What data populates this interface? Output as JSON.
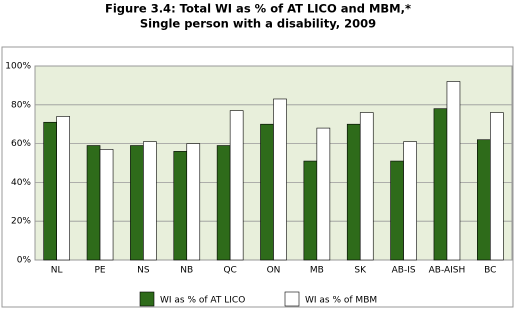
{
  "chart_data": {
    "type": "bar",
    "title": "Figure 3.4: Total WI as % of AT LICO and MBM,*",
    "subtitle": "Single person with a disability, 2009",
    "categories": [
      "NL",
      "PE",
      "NS",
      "NB",
      "QC",
      "ON",
      "MB",
      "SK",
      "AB-IS",
      "AB-AISH",
      "BC"
    ],
    "series": [
      {
        "name": "WI as % of AT LICO",
        "color": "#2e6b1a",
        "values": [
          71,
          59,
          59,
          56,
          59,
          70,
          51,
          70,
          51,
          78,
          62
        ]
      },
      {
        "name": "WI as % of MBM",
        "color": "#ffffff",
        "values": [
          74,
          57,
          61,
          60,
          77,
          83,
          68,
          76,
          61,
          92,
          76
        ]
      }
    ],
    "ylim": [
      0,
      100
    ],
    "yticks": [
      {
        "value": 0,
        "label": "0%"
      },
      {
        "value": 20,
        "label": "20%"
      },
      {
        "value": 40,
        "label": "40%"
      },
      {
        "value": 60,
        "label": "60%"
      },
      {
        "value": 80,
        "label": "80%"
      },
      {
        "value": 100,
        "label": "100%"
      }
    ],
    "grid": true,
    "legend": "bottom"
  }
}
